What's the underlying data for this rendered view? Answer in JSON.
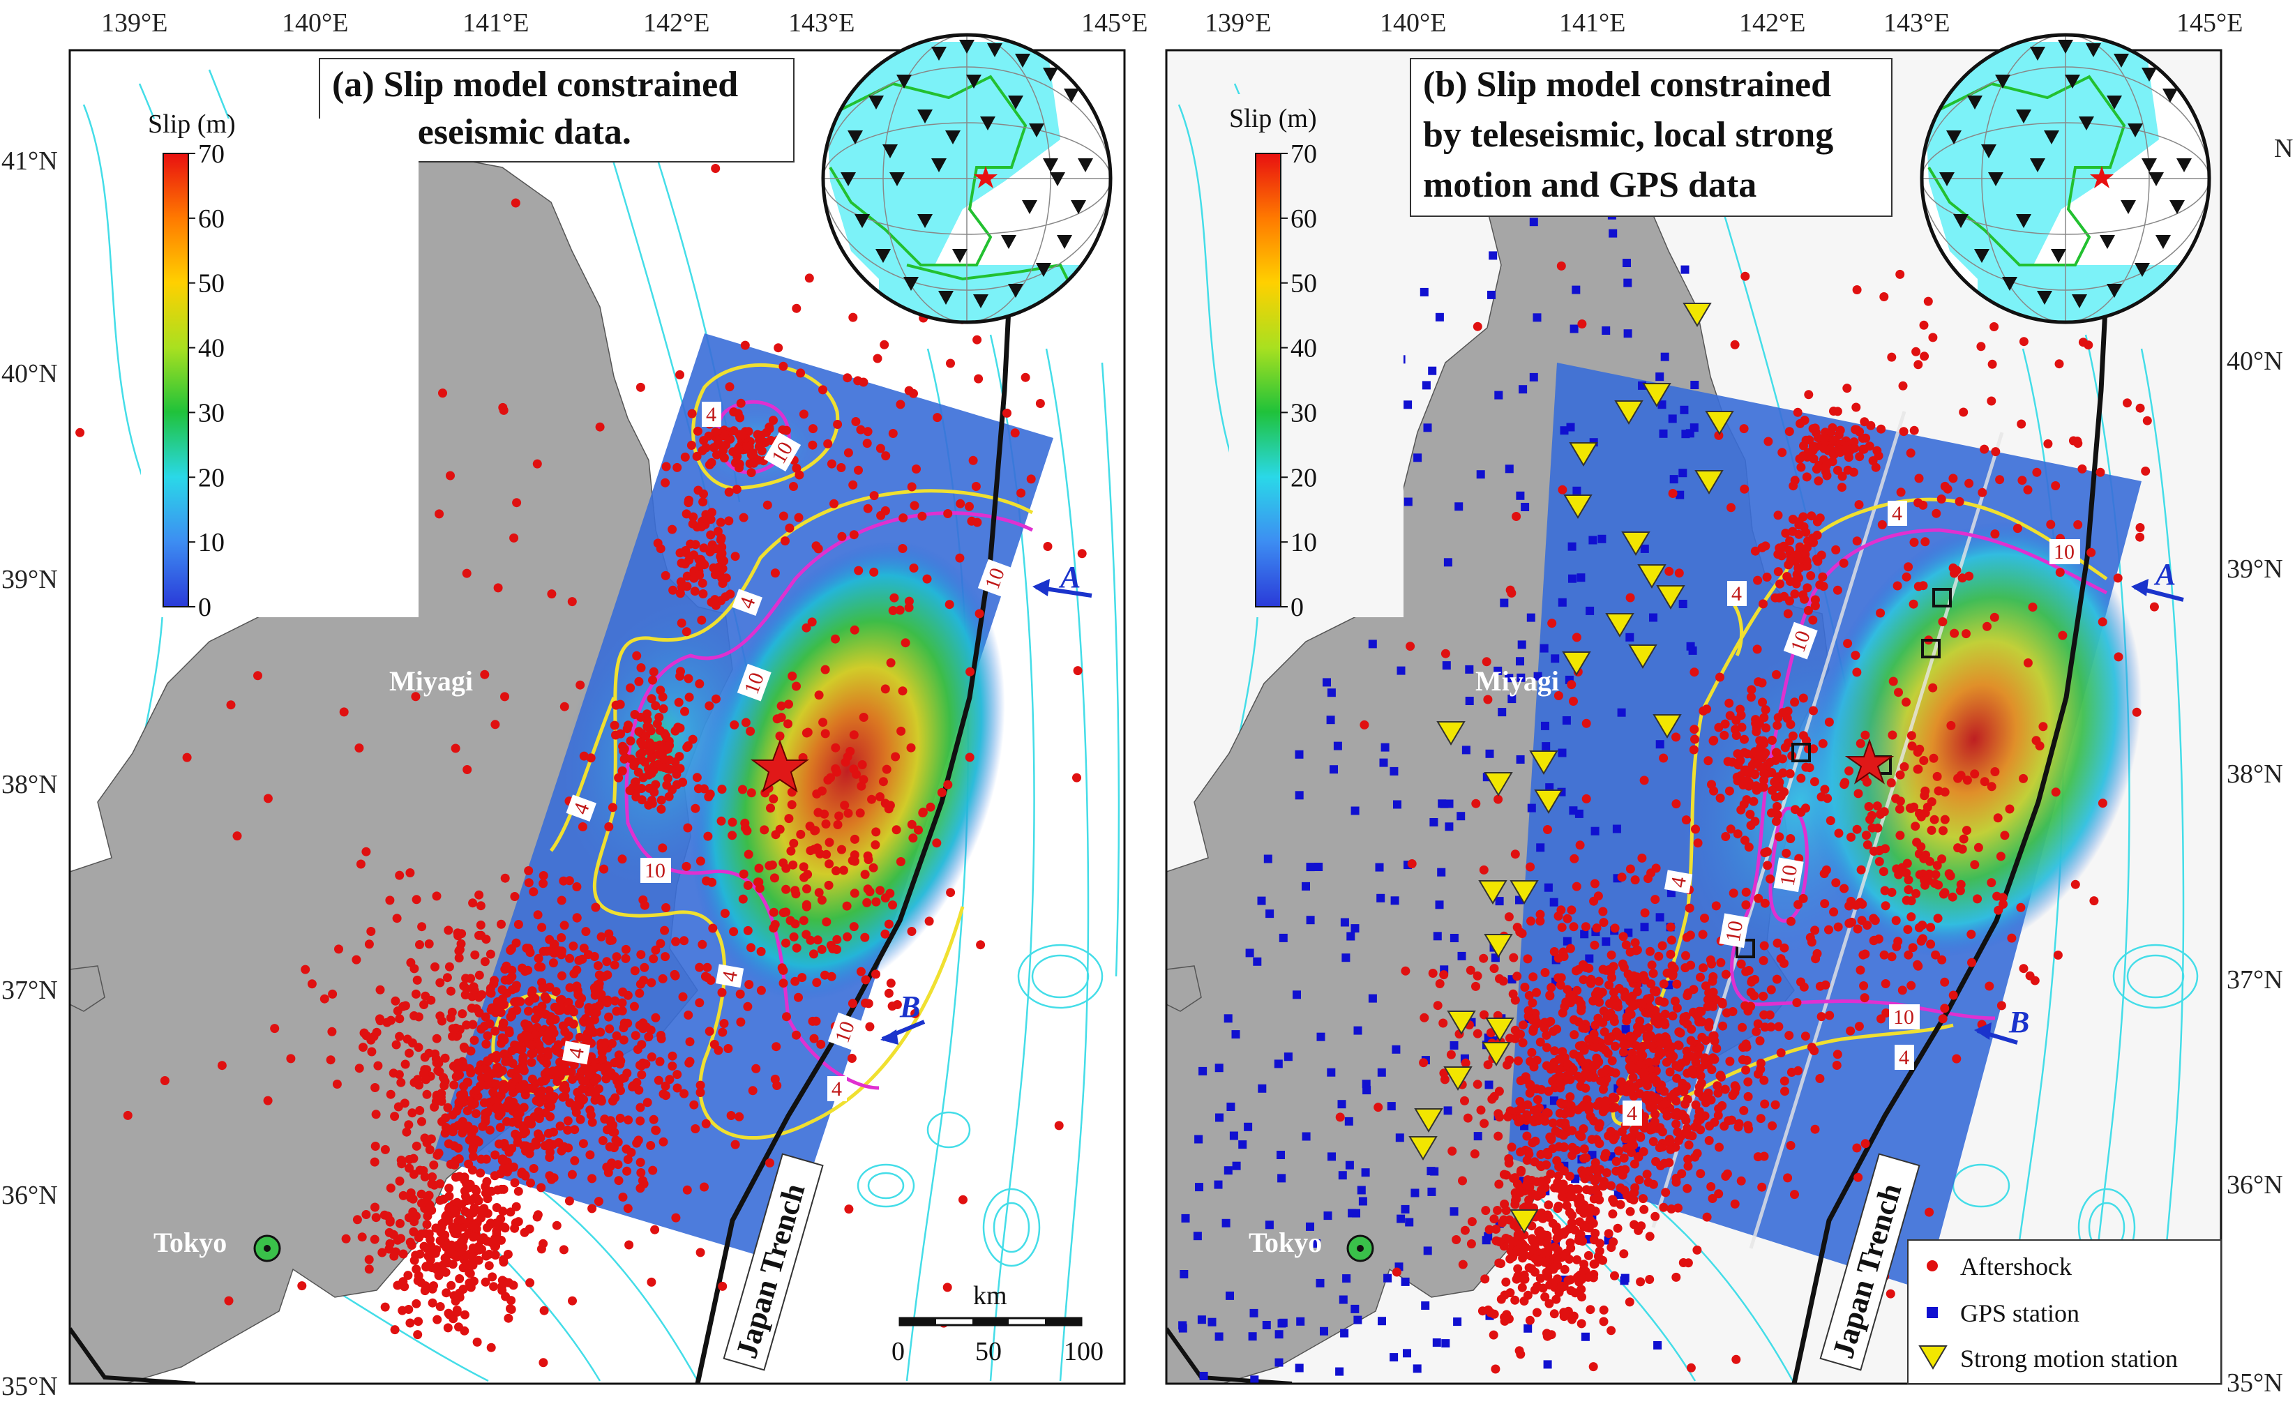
{
  "panels": [
    {
      "id": "a",
      "title_lines": [
        "(a) Slip model constrained",
        "by teleseismic data."
      ],
      "lon_ticks": [
        "139°E",
        "140°E",
        "141°E",
        "142°E",
        "143°E",
        "145°E"
      ],
      "lat_ticks": [
        "41°N",
        "40°N",
        "39°N",
        "38°N",
        "37°N",
        "36°N",
        "35°N"
      ],
      "place_labels": [
        "Miyagi",
        "Tokyo"
      ],
      "trench_label": "Japan Trench",
      "profile_labels": [
        "A",
        "B"
      ],
      "contour_labels": [
        "4",
        "10",
        "10",
        "4",
        "10",
        "4",
        "10",
        "4",
        "10",
        "4",
        "4",
        "4"
      ],
      "colorbar": {
        "title": "Slip (m)",
        "ticks": [
          "70",
          "60",
          "50",
          "40",
          "30",
          "20",
          "10",
          "0"
        ]
      },
      "scalebar": {
        "unit": "km",
        "ticks": [
          "0",
          "50",
          "100"
        ]
      }
    },
    {
      "id": "b",
      "title_lines": [
        "(b) Slip model constrained",
        "by teleseismic, local strong",
        "motion  and GPS data"
      ],
      "lon_ticks": [
        "139°E",
        "140°E",
        "141°E",
        "142°E",
        "143°E",
        "145°E"
      ],
      "lat_ticks": [
        "40°N",
        "39°N",
        "38°N",
        "37°N",
        "36°N",
        "35°N"
      ],
      "lat_partial": "N",
      "place_labels": [
        "Miyagi",
        "Tokyo"
      ],
      "trench_label": "Japan Trench",
      "profile_labels": [
        "A",
        "B"
      ],
      "contour_labels": [
        "4",
        "10",
        "4",
        "10",
        "10",
        "10",
        "4",
        "10",
        "4",
        "4"
      ],
      "colorbar": {
        "title": "Slip (m)",
        "ticks": [
          "70",
          "60",
          "50",
          "40",
          "30",
          "20",
          "10",
          "0"
        ]
      },
      "legend": [
        "Aftershock",
        "GPS station",
        "Strong motion station"
      ]
    }
  ],
  "colors": {
    "land": "#a6a6a6",
    "sea": "#ffffff",
    "bathymetry": "#44dde8",
    "aftershock": "#e01010",
    "gps": "#1010d0",
    "strong_motion": "#f2e600",
    "contour_4": "#f0e030",
    "contour_10": "#e030d0"
  }
}
